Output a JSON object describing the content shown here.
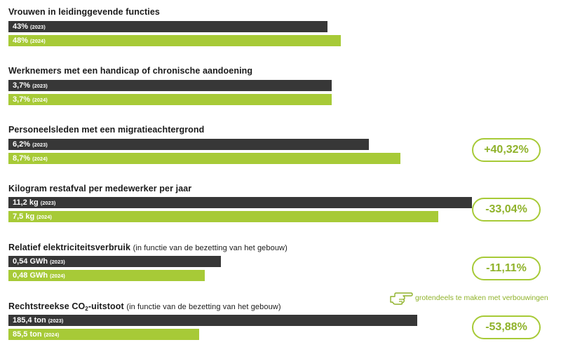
{
  "chart_data": {
    "type": "bar",
    "bar_scale_max": 11.2,
    "colors": {
      "y2023": "#373737",
      "y2024": "#a7ca37",
      "badge": "#a7ca37"
    },
    "groups": [
      {
        "title": "Vrouwen in leidinggevende functies",
        "subtitle": "",
        "bars": [
          {
            "label": "43%",
            "year": "(2023)",
            "value": 43,
            "color": "#373737"
          },
          {
            "label": "48%",
            "year": "(2024)",
            "value": 48,
            "color": "#a7ca37"
          }
        ],
        "change": ""
      },
      {
        "title": "Werknemers met een handicap of chronische aandoening",
        "subtitle": "",
        "bars": [
          {
            "label": "3,7%",
            "year": "(2023)",
            "value": 3.7,
            "color": "#373737"
          },
          {
            "label": "3,7%",
            "year": "(2024)",
            "value": 3.7,
            "color": "#a7ca37"
          }
        ],
        "change": ""
      },
      {
        "title": "Personeelsleden met een migratieachtergrond",
        "subtitle": "",
        "bars": [
          {
            "label": "6,2%",
            "year": "(2023)",
            "value": 6.2,
            "color": "#373737"
          },
          {
            "label": "8,7%",
            "year": "(2024)",
            "value": 8.7,
            "color": "#a7ca37"
          }
        ],
        "change": "+40,32%"
      },
      {
        "title": "Kilogram restafval per medewerker per jaar",
        "subtitle": "",
        "bars": [
          {
            "label": "11,2 kg",
            "year": "(2023)",
            "value": 11.2,
            "color": "#373737"
          },
          {
            "label": "7,5 kg",
            "year": "(2024)",
            "value": 7.5,
            "color": "#a7ca37"
          }
        ],
        "change": "-33,04%"
      },
      {
        "title": "Relatief elektriciteitsverbruik",
        "subtitle": "(in functie van de bezetting van het gebouw)",
        "bars": [
          {
            "label": "0,54 GWh",
            "year": "(2023)",
            "value": 0.54,
            "color": "#373737"
          },
          {
            "label": "0,48 GWh",
            "year": "(2024)",
            "value": 0.48,
            "color": "#a7ca37"
          }
        ],
        "change": "-11,11%"
      },
      {
        "title_parts": [
          "Rechtstreekse CO",
          "2",
          "-uitstoot"
        ],
        "subtitle": "(in functie van de bezetting van het gebouw)",
        "bars": [
          {
            "label": "185,4 ton",
            "year": "(2023)",
            "value": 185.4,
            "color": "#373737"
          },
          {
            "label": "85,5 ton",
            "year": "(2024)",
            "value": 85.5,
            "color": "#a7ca37"
          }
        ],
        "change": "-53,88%"
      }
    ]
  },
  "note": {
    "text": "grotendeels te maken met verbouwingen",
    "icon": "pointing-hand-icon"
  }
}
